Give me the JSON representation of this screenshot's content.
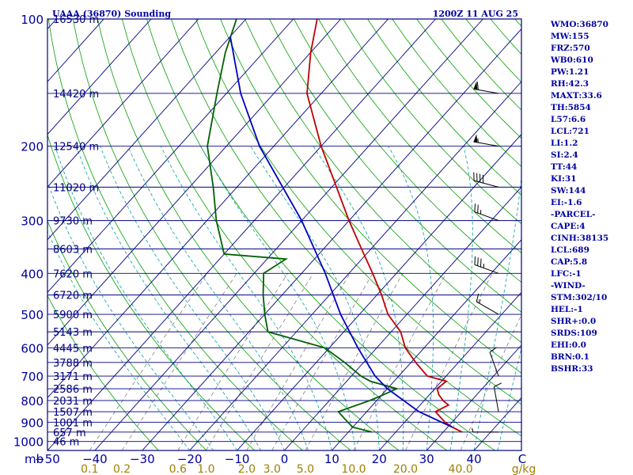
{
  "chart_data": {
    "type": "line",
    "title": "UAAA (36870) Sounding",
    "subtitle": "1200Z 11 AUG 25",
    "pressure_labels": [
      "100",
      "200",
      "300",
      "400",
      "500",
      "600",
      "700",
      "800",
      "900",
      "1000"
    ],
    "pressure_axis_unit": "mb",
    "height_labels": [
      {
        "p": 100,
        "label": "16530 m"
      },
      {
        "p": 150,
        "label": "14420 m"
      },
      {
        "p": 200,
        "label": "12540 m"
      },
      {
        "p": 250,
        "label": "11020 m"
      },
      {
        "p": 300,
        "label": "9730 m"
      },
      {
        "p": 350,
        "label": "8603 m"
      },
      {
        "p": 400,
        "label": "7620 m"
      },
      {
        "p": 450,
        "label": "6720 m"
      },
      {
        "p": 500,
        "label": "5900 m"
      },
      {
        "p": 550,
        "label": "5143 m"
      },
      {
        "p": 600,
        "label": "4445 m"
      },
      {
        "p": 650,
        "label": "3788 m"
      },
      {
        "p": 700,
        "label": "3171 m"
      },
      {
        "p": 750,
        "label": "2586 m"
      },
      {
        "p": 800,
        "label": "2031 m"
      },
      {
        "p": 850,
        "label": "1507 m"
      },
      {
        "p": 900,
        "label": "1001 m"
      },
      {
        "p": 950,
        "label": "657 m"
      },
      {
        "p": 1000,
        "label": "46 m"
      }
    ],
    "temperature_ticks": [
      -50,
      -40,
      -30,
      -20,
      -10,
      0,
      10,
      20,
      30,
      40
    ],
    "temperature_tick_labels": [
      "−50",
      "−40",
      "−30",
      "−20",
      "−10",
      "0",
      "10",
      "20",
      "30",
      "40"
    ],
    "temperature_axis_unit": "C",
    "mixing_ratio_labels": [
      "0.1",
      "0.2",
      "0.6",
      "1.0",
      "2.0",
      "3.0",
      "5.0",
      "10.0",
      "20.0",
      "40.0"
    ],
    "mixing_ratio_unit": "g/kg",
    "xlim": [
      -50,
      50
    ],
    "ylim": [
      1050,
      100
    ],
    "series": [
      {
        "kind": "temperature",
        "color": "#c00000",
        "points": [
          {
            "p": 950,
            "t": 34.0
          },
          {
            "p": 925,
            "t": 31.0
          },
          {
            "p": 900,
            "t": 28.5
          },
          {
            "p": 850,
            "t": 24.5
          },
          {
            "p": 820,
            "t": 26.0
          },
          {
            "p": 800,
            "t": 24.0
          },
          {
            "p": 775,
            "t": 22.0
          },
          {
            "p": 750,
            "t": 20.5
          },
          {
            "p": 720,
            "t": 21.0
          },
          {
            "p": 700,
            "t": 16.0
          },
          {
            "p": 650,
            "t": 11.0
          },
          {
            "p": 600,
            "t": 6.0
          },
          {
            "p": 550,
            "t": 2.0
          },
          {
            "p": 500,
            "t": -4.0
          },
          {
            "p": 450,
            "t": -9.0
          },
          {
            "p": 400,
            "t": -15.0
          },
          {
            "p": 350,
            "t": -22.0
          },
          {
            "p": 300,
            "t": -30.0
          },
          {
            "p": 250,
            "t": -39.0
          },
          {
            "p": 200,
            "t": -50.0
          },
          {
            "p": 150,
            "t": -63.0
          },
          {
            "p": 120,
            "t": -70.0
          },
          {
            "p": 100,
            "t": -75.0
          }
        ]
      },
      {
        "kind": "dewpoint",
        "color": "#006000",
        "points": [
          {
            "p": 950,
            "t": 15.0
          },
          {
            "p": 925,
            "t": 10.0
          },
          {
            "p": 900,
            "t": 8.0
          },
          {
            "p": 850,
            "t": 4.0
          },
          {
            "p": 800,
            "t": 8.5
          },
          {
            "p": 780,
            "t": 10.0
          },
          {
            "p": 750,
            "t": 12.0
          },
          {
            "p": 720,
            "t": 5.0
          },
          {
            "p": 700,
            "t": 2.0
          },
          {
            "p": 650,
            "t": -4.0
          },
          {
            "p": 600,
            "t": -11.0
          },
          {
            "p": 550,
            "t": -26.0
          },
          {
            "p": 500,
            "t": -30.0
          },
          {
            "p": 450,
            "t": -34.0
          },
          {
            "p": 400,
            "t": -38.0
          },
          {
            "p": 370,
            "t": -36.0
          },
          {
            "p": 360,
            "t": -50.0
          },
          {
            "p": 300,
            "t": -58.0
          },
          {
            "p": 250,
            "t": -65.0
          },
          {
            "p": 200,
            "t": -74.0
          },
          {
            "p": 150,
            "t": -82.0
          },
          {
            "p": 120,
            "t": -88.0
          },
          {
            "p": 100,
            "t": -92.0
          }
        ]
      },
      {
        "kind": "parcel",
        "color": "#0000c0",
        "points": [
          {
            "p": 925,
            "t": 31.0
          },
          {
            "p": 850,
            "t": 21.0
          },
          {
            "p": 750,
            "t": 10.0
          },
          {
            "p": 700,
            "t": 5.0
          },
          {
            "p": 600,
            "t": -4.0
          },
          {
            "p": 500,
            "t": -14.0
          },
          {
            "p": 400,
            "t": -25.0
          },
          {
            "p": 300,
            "t": -40.0
          },
          {
            "p": 200,
            "t": -63.0
          },
          {
            "p": 150,
            "t": -77.0
          },
          {
            "p": 110,
            "t": -90.0
          }
        ]
      }
    ],
    "wind_barbs": [
      {
        "p": 150,
        "dir": 280,
        "spd": 60
      },
      {
        "p": 200,
        "dir": 280,
        "spd": 55
      },
      {
        "p": 250,
        "dir": 285,
        "spd": 40
      },
      {
        "p": 300,
        "dir": 290,
        "spd": 25
      },
      {
        "p": 400,
        "dir": 290,
        "spd": 35
      },
      {
        "p": 500,
        "dir": 300,
        "spd": 15
      },
      {
        "p": 700,
        "dir": 340,
        "spd": 10
      },
      {
        "p": 850,
        "dir": 350,
        "spd": 10
      },
      {
        "p": 950,
        "dir": 270,
        "spd": 5
      }
    ],
    "grid": true
  },
  "indices": [
    "WMO:36870",
    "MW:155",
    "FRZ:570",
    "WB0:610",
    "PW:1.21",
    "RH:42.3",
    "MAXT:33.6",
    "TH:5854",
    "L57:6.6",
    "LCL:721",
    "LI:1.2",
    "SI:2.4",
    "TT:44",
    "KI:31",
    "SW:144",
    "EI:-1.6",
    "-PARCEL-",
    "CAPE:4",
    "CINH:38135",
    "LCL:689",
    "CAP:5.8",
    "LFC:-1",
    "-WIND-",
    "STM:302/10",
    "HEL:-1",
    "SHR+:0.0",
    "SRDS:109",
    "EHI:0.0",
    "BRN:0.1",
    "BSHR:33"
  ],
  "colors": {
    "frame": "#000080",
    "isobar": "#000080",
    "isotherm": "#000080",
    "dry_adiabat": "#00a000",
    "moist_adiabat": "#00a0a0",
    "mixing_ratio": "#707070",
    "mixing_ratio_label": "#a08000",
    "text": "#0000a0"
  }
}
